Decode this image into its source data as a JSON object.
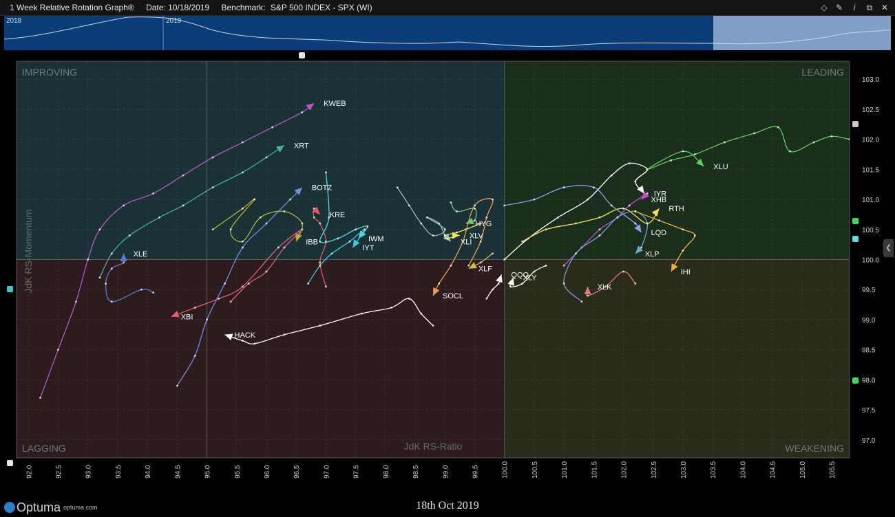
{
  "window": {
    "title": "1 Week Relative Rotation Graph®",
    "date": "Date: 10/18/2019",
    "benchmark_label": "Benchmark:",
    "benchmark": "S&P 500 INDEX - SPX (WI)",
    "icons": [
      "diamond-icon",
      "pin-icon",
      "info-icon",
      "restore-icon",
      "close-icon"
    ]
  },
  "timeline": {
    "years": [
      "2018",
      "2019"
    ]
  },
  "footer": {
    "logo": "Optuma",
    "url": "optuma.com",
    "date": "18th Oct 2019"
  },
  "colors": {
    "improving": "#1a3136",
    "leading": "#1b2e1c",
    "lagging": "#2d1b1d",
    "weakening": "#2b2b1b"
  },
  "chart_data": {
    "type": "scatter",
    "xlabel": "JdK RS-Ratio",
    "ylabel": "JdK RS-Momentum",
    "xlim": [
      91.8,
      105.8
    ],
    "ylim": [
      96.7,
      103.3
    ],
    "grid": true,
    "quadrants": {
      "top_left": "IMPROVING",
      "top_right": "LEADING",
      "bottom_left": "LAGGING",
      "bottom_right": "WEAKENING"
    },
    "x_ticks": [
      92.0,
      92.5,
      93.0,
      93.5,
      94.0,
      94.5,
      95.0,
      95.5,
      96.0,
      96.5,
      97.0,
      97.5,
      98.0,
      98.5,
      99.0,
      99.5,
      100.0,
      100.5,
      101.0,
      101.5,
      102.0,
      102.5,
      103.0,
      103.5,
      104.0,
      104.5,
      105.0,
      105.5
    ],
    "y_ticks": [
      97.0,
      97.5,
      98.0,
      98.5,
      99.0,
      99.5,
      100.0,
      100.5,
      101.0,
      101.5,
      102.0,
      102.5,
      103.0
    ],
    "series": [
      {
        "name": "KWEB",
        "color": "#b55bc5",
        "points": [
          [
            92.2,
            97.7
          ],
          [
            92.5,
            98.5
          ],
          [
            92.8,
            99.3
          ],
          [
            93.0,
            100.0
          ],
          [
            93.2,
            100.5
          ],
          [
            93.6,
            100.9
          ],
          [
            94.1,
            101.1
          ],
          [
            94.6,
            101.4
          ],
          [
            95.1,
            101.7
          ],
          [
            95.6,
            101.95
          ],
          [
            96.1,
            102.2
          ],
          [
            96.6,
            102.45
          ],
          [
            96.8,
            102.6
          ]
        ]
      },
      {
        "name": "XRT",
        "color": "#4ab0a8",
        "points": [
          [
            93.2,
            99.7
          ],
          [
            93.4,
            100.1
          ],
          [
            93.7,
            100.4
          ],
          [
            94.2,
            100.7
          ],
          [
            94.6,
            100.9
          ],
          [
            95.1,
            101.2
          ],
          [
            95.6,
            101.45
          ],
          [
            96.0,
            101.7
          ],
          [
            96.3,
            101.9
          ]
        ]
      },
      {
        "name": "BOTZ",
        "color": "#6f8fe0",
        "points": [
          [
            94.5,
            97.9
          ],
          [
            94.8,
            98.4
          ],
          [
            95.0,
            99.0
          ],
          [
            95.3,
            99.6
          ],
          [
            95.6,
            100.2
          ],
          [
            96.0,
            100.6
          ],
          [
            96.4,
            101.0
          ],
          [
            96.6,
            101.2
          ]
        ]
      },
      {
        "name": "KRE",
        "color": "#e05a6a",
        "points": [
          [
            97.0,
            99.55
          ],
          [
            96.9,
            99.95
          ],
          [
            97.0,
            100.3
          ],
          [
            96.9,
            100.6
          ],
          [
            96.8,
            100.7
          ],
          [
            96.8,
            100.85
          ],
          [
            96.9,
            100.75
          ]
        ]
      },
      {
        "name": "IBB",
        "color": "#b5b03a",
        "points": [
          [
            95.1,
            100.5
          ],
          [
            95.6,
            100.85
          ],
          [
            95.8,
            101.0
          ],
          [
            95.4,
            100.5
          ],
          [
            95.6,
            100.3
          ],
          [
            95.9,
            100.7
          ],
          [
            96.3,
            100.8
          ],
          [
            96.6,
            100.6
          ],
          [
            96.5,
            100.3
          ]
        ]
      },
      {
        "name": "IWM",
        "color": "#5fd8e6",
        "points": [
          [
            97.0,
            101.45
          ],
          [
            97.05,
            100.7
          ],
          [
            96.9,
            100.3
          ],
          [
            97.2,
            100.35
          ],
          [
            97.5,
            100.5
          ],
          [
            97.7,
            100.55
          ],
          [
            97.55,
            100.35
          ]
        ]
      },
      {
        "name": "IYT",
        "color": "#36d0e0",
        "points": [
          [
            96.7,
            99.6
          ],
          [
            96.9,
            99.9
          ],
          [
            97.1,
            100.1
          ],
          [
            97.4,
            100.3
          ],
          [
            97.65,
            100.5
          ],
          [
            97.45,
            100.2
          ]
        ]
      },
      {
        "name": "XLE",
        "color": "#5a7fd8",
        "points": [
          [
            94.1,
            99.45
          ],
          [
            93.9,
            99.5
          ],
          [
            93.4,
            99.3
          ],
          [
            93.3,
            99.6
          ],
          [
            93.4,
            99.85
          ],
          [
            93.6,
            99.95
          ],
          [
            93.6,
            100.1
          ]
        ]
      },
      {
        "name": "XBI",
        "color": "#e0606e",
        "points": [
          [
            95.4,
            99.3
          ],
          [
            95.7,
            99.6
          ],
          [
            96.0,
            99.8
          ],
          [
            96.3,
            100.2
          ],
          [
            96.6,
            100.5
          ],
          [
            96.2,
            100.2
          ],
          [
            95.6,
            99.55
          ],
          [
            95.2,
            99.35
          ],
          [
            94.8,
            99.2
          ],
          [
            94.4,
            99.05
          ]
        ]
      },
      {
        "name": "HACK",
        "color": "#ffffff",
        "points": [
          [
            98.8,
            98.9
          ],
          [
            98.6,
            99.1
          ],
          [
            98.4,
            99.35
          ],
          [
            98.1,
            99.2
          ],
          [
            97.6,
            99.1
          ],
          [
            96.9,
            98.9
          ],
          [
            96.3,
            98.75
          ],
          [
            95.8,
            98.6
          ],
          [
            95.6,
            98.65
          ],
          [
            95.3,
            98.75
          ]
        ]
      },
      {
        "name": "XLI",
        "color": "#9fb8c0",
        "points": [
          [
            98.2,
            101.2
          ],
          [
            98.4,
            100.9
          ],
          [
            98.6,
            100.6
          ],
          [
            98.8,
            100.4
          ],
          [
            99.0,
            100.5
          ],
          [
            98.7,
            100.7
          ],
          [
            98.9,
            100.6
          ],
          [
            99.0,
            100.4
          ],
          [
            99.1,
            100.3
          ]
        ]
      },
      {
        "name": "XLV",
        "color": "#f2e447",
        "points": [
          [
            99.6,
            100.6
          ],
          [
            99.35,
            100.5
          ],
          [
            99.2,
            100.45
          ],
          [
            99.0,
            100.4
          ],
          [
            99.05,
            100.35
          ],
          [
            99.2,
            100.4
          ],
          [
            99.25,
            100.4
          ]
        ]
      },
      {
        "name": "HYG",
        "color": "#6fc873",
        "points": [
          [
            99.1,
            100.95
          ],
          [
            99.2,
            100.8
          ],
          [
            99.5,
            100.85
          ],
          [
            99.5,
            100.65
          ],
          [
            99.35,
            100.6
          ]
        ]
      },
      {
        "name": "SOCL",
        "color": "#f0a050",
        "points": [
          [
            99.4,
            99.9
          ],
          [
            99.6,
            100.3
          ],
          [
            99.7,
            100.7
          ],
          [
            99.8,
            101.0
          ],
          [
            99.5,
            100.9
          ],
          [
            99.3,
            100.3
          ],
          [
            99.1,
            99.9
          ],
          [
            98.9,
            99.6
          ],
          [
            98.8,
            99.4
          ]
        ]
      },
      {
        "name": "XLF",
        "color": "#c9c045",
        "points": [
          [
            99.8,
            100.1
          ],
          [
            99.6,
            99.95
          ],
          [
            99.4,
            99.85
          ]
        ]
      },
      {
        "name": "QQQ",
        "color": "#ffffff",
        "points": [
          [
            99.7,
            99.35
          ],
          [
            99.8,
            99.5
          ],
          [
            99.9,
            99.6
          ],
          [
            99.95,
            99.75
          ]
        ]
      },
      {
        "name": "XLY",
        "color": "#ffffff",
        "points": [
          [
            100.7,
            99.9
          ],
          [
            100.5,
            99.8
          ],
          [
            100.3,
            99.6
          ],
          [
            100.1,
            99.55
          ],
          [
            100.15,
            99.7
          ]
        ]
      },
      {
        "name": "XLK",
        "color": "#e07a8a",
        "points": [
          [
            102.2,
            99.6
          ],
          [
            102.0,
            99.8
          ],
          [
            101.7,
            99.55
          ],
          [
            101.4,
            99.4
          ],
          [
            101.4,
            99.55
          ]
        ]
      },
      {
        "name": "XLU",
        "color": "#5fcc63",
        "points": [
          [
            105.8,
            102.0
          ],
          [
            105.5,
            102.05
          ],
          [
            105.2,
            101.95
          ],
          [
            104.8,
            101.8
          ],
          [
            104.6,
            102.2
          ],
          [
            104.2,
            102.1
          ],
          [
            103.7,
            101.95
          ],
          [
            103.2,
            101.75
          ],
          [
            102.8,
            101.65
          ],
          [
            102.4,
            101.5
          ],
          [
            103.0,
            101.8
          ],
          [
            103.3,
            101.6
          ],
          [
            103.35,
            101.55
          ]
        ]
      },
      {
        "name": "IYR",
        "color": "#ffffff",
        "points": [
          [
            100.0,
            100.0
          ],
          [
            100.4,
            100.35
          ],
          [
            100.9,
            100.7
          ],
          [
            101.4,
            101.0
          ],
          [
            101.8,
            101.4
          ],
          [
            102.1,
            101.6
          ],
          [
            102.4,
            101.5
          ],
          [
            102.2,
            101.3
          ],
          [
            102.35,
            101.1
          ]
        ]
      },
      {
        "name": "XHB",
        "color": "#c04fd0",
        "points": [
          [
            101.0,
            99.9
          ],
          [
            101.3,
            100.2
          ],
          [
            101.6,
            100.5
          ],
          [
            101.9,
            100.7
          ],
          [
            102.1,
            100.9
          ],
          [
            102.4,
            101.1
          ],
          [
            102.3,
            101.0
          ]
        ]
      },
      {
        "name": "RTH",
        "color": "#f2e060",
        "points": [
          [
            100.3,
            100.3
          ],
          [
            100.7,
            100.5
          ],
          [
            101.2,
            100.6
          ],
          [
            101.6,
            100.7
          ],
          [
            102.0,
            100.85
          ],
          [
            102.4,
            100.6
          ],
          [
            102.6,
            100.85
          ]
        ]
      },
      {
        "name": "LQD",
        "color": "#8ea0e8",
        "points": [
          [
            100.0,
            100.9
          ],
          [
            100.5,
            101.0
          ],
          [
            101.0,
            101.2
          ],
          [
            101.5,
            101.2
          ],
          [
            101.8,
            100.9
          ],
          [
            102.2,
            100.6
          ],
          [
            102.3,
            100.45
          ]
        ]
      },
      {
        "name": "XLP",
        "color": "#6fa6d6",
        "points": [
          [
            101.3,
            99.3
          ],
          [
            101.0,
            99.6
          ],
          [
            101.2,
            100.1
          ],
          [
            101.6,
            100.4
          ],
          [
            101.9,
            100.7
          ],
          [
            102.2,
            100.8
          ],
          [
            102.4,
            100.6
          ],
          [
            102.3,
            100.2
          ],
          [
            102.2,
            100.1
          ]
        ]
      },
      {
        "name": "IHI",
        "color": "#f0b040",
        "points": [
          [
            102.2,
            100.8
          ],
          [
            102.6,
            100.65
          ],
          [
            103.0,
            100.5
          ],
          [
            103.2,
            100.4
          ],
          [
            103.0,
            100.15
          ],
          [
            102.8,
            99.8
          ]
        ]
      }
    ]
  }
}
